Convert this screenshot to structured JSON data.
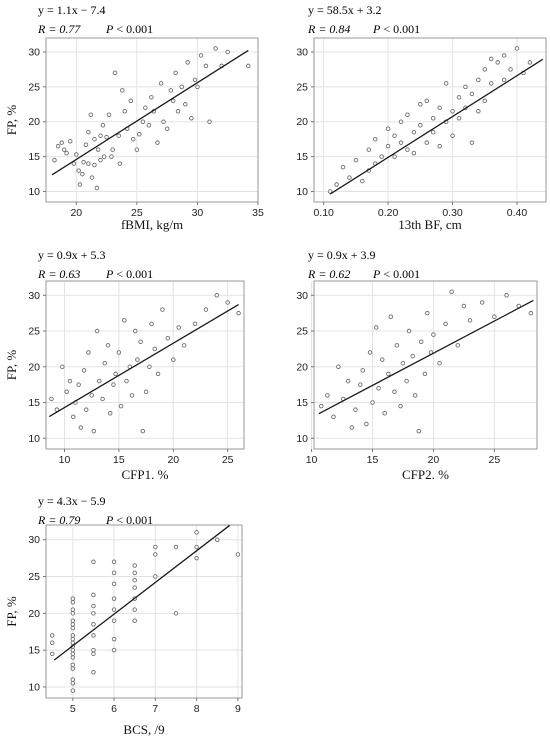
{
  "chart_data": [
    {
      "type": "scatter",
      "equation": "y = 1.1x − 7.4",
      "r_label": "R = 0.77",
      "p_label": "P < 0.001",
      "xlabel": "fBMI, kg/m",
      "ylabel": "FP, %",
      "xlim": [
        17.5,
        35
      ],
      "ylim": [
        8.5,
        32
      ],
      "xticks": [
        20,
        25,
        30,
        35
      ],
      "yticks": [
        10,
        15,
        20,
        25,
        30
      ],
      "trend": {
        "slope": 1.1,
        "intercept": -7.4,
        "x_from": 18.0,
        "x_to": 34.2
      },
      "x": [
        18.2,
        18.5,
        18.8,
        19.0,
        19.2,
        19.5,
        19.8,
        20.0,
        20.2,
        20.3,
        20.5,
        20.6,
        20.8,
        21.0,
        21.0,
        21.2,
        21.3,
        21.5,
        21.5,
        21.7,
        21.8,
        22.0,
        22.0,
        22.2,
        22.3,
        22.5,
        22.7,
        22.9,
        23.0,
        23.2,
        23.5,
        23.6,
        23.8,
        24.0,
        24.2,
        24.5,
        24.7,
        25.0,
        25.2,
        25.5,
        25.7,
        26.0,
        26.2,
        26.4,
        26.7,
        27.0,
        27.2,
        27.5,
        27.8,
        28.0,
        28.2,
        28.4,
        28.7,
        29.0,
        29.2,
        29.5,
        29.8,
        30.0,
        30.3,
        30.7,
        31.0,
        31.5,
        32.0,
        32.5,
        34.2
      ],
      "y": [
        14.5,
        16.5,
        17.0,
        16.0,
        15.5,
        17.2,
        14.0,
        15.3,
        13.0,
        11.0,
        12.5,
        14.2,
        16.7,
        18.5,
        14.0,
        21.0,
        12.0,
        13.8,
        17.5,
        10.5,
        16.0,
        14.5,
        18.0,
        19.5,
        15.0,
        17.8,
        21.0,
        15.0,
        16.0,
        27.0,
        18.0,
        14.0,
        24.5,
        21.5,
        19.0,
        23.0,
        17.5,
        16.0,
        18.2,
        20.0,
        22.0,
        19.5,
        23.5,
        21.5,
        17.0,
        25.5,
        20.0,
        19.0,
        24.5,
        23.0,
        27.0,
        21.5,
        25.0,
        22.5,
        28.5,
        20.5,
        26.0,
        25.0,
        29.5,
        28.0,
        20.0,
        30.5,
        28.0,
        30.0,
        28.0
      ]
    },
    {
      "type": "scatter",
      "equation": "y = 58.5x + 3.2",
      "r_label": "R = 0.84",
      "p_label": "P < 0.001",
      "xlabel": "13th BF, cm",
      "ylabel": "",
      "xlim": [
        0.085,
        0.445
      ],
      "ylim": [
        8.5,
        32
      ],
      "xticks": [
        0.1,
        0.2,
        0.3,
        0.4
      ],
      "yticks": [
        10,
        15,
        20,
        25,
        30
      ],
      "trend": {
        "slope": 58.5,
        "intercept": 3.2,
        "x_from": 0.11,
        "x_to": 0.44
      },
      "x": [
        0.11,
        0.12,
        0.13,
        0.14,
        0.15,
        0.16,
        0.17,
        0.17,
        0.18,
        0.18,
        0.19,
        0.2,
        0.2,
        0.21,
        0.21,
        0.22,
        0.22,
        0.23,
        0.23,
        0.24,
        0.24,
        0.25,
        0.25,
        0.26,
        0.26,
        0.27,
        0.27,
        0.28,
        0.28,
        0.29,
        0.29,
        0.3,
        0.3,
        0.31,
        0.31,
        0.32,
        0.32,
        0.33,
        0.33,
        0.34,
        0.34,
        0.35,
        0.35,
        0.36,
        0.36,
        0.37,
        0.38,
        0.38,
        0.39,
        0.4,
        0.41,
        0.42
      ],
      "y": [
        10.0,
        11.0,
        13.5,
        12.0,
        14.5,
        11.5,
        13.0,
        16.0,
        17.5,
        14.0,
        15.0,
        19.0,
        16.5,
        15.0,
        18.0,
        17.0,
        20.0,
        16.0,
        21.0,
        18.5,
        15.5,
        22.5,
        19.5,
        17.0,
        23.0,
        20.5,
        18.5,
        22.0,
        16.5,
        25.5,
        20.0,
        21.5,
        18.0,
        23.5,
        20.5,
        25.0,
        22.0,
        24.0,
        17.0,
        26.0,
        21.5,
        27.5,
        23.0,
        25.5,
        29.0,
        28.5,
        26.0,
        29.5,
        27.5,
        30.5,
        27.0,
        28.5
      ]
    },
    {
      "type": "scatter",
      "equation": "y = 0.9x + 5.3",
      "r_label": "R = 0.63",
      "p_label": "P < 0.001",
      "xlabel": "CFP1. %",
      "ylabel": "FP, %",
      "xlim": [
        8.3,
        26.5
      ],
      "ylim": [
        8.5,
        32
      ],
      "xticks": [
        10,
        15,
        20,
        25
      ],
      "yticks": [
        10,
        15,
        20,
        25,
        30
      ],
      "trend": {
        "slope": 0.9,
        "intercept": 5.3,
        "x_from": 8.6,
        "x_to": 26.0
      },
      "x": [
        8.8,
        9.3,
        9.8,
        10.2,
        10.5,
        10.8,
        11.0,
        11.3,
        11.5,
        11.8,
        12.0,
        12.2,
        12.5,
        12.7,
        13.0,
        13.2,
        13.5,
        13.7,
        14.0,
        14.2,
        14.5,
        14.7,
        15.0,
        15.2,
        15.5,
        15.7,
        16.0,
        16.2,
        16.5,
        16.7,
        17.0,
        17.2,
        17.5,
        17.8,
        18.0,
        18.3,
        18.6,
        19.0,
        19.5,
        20.0,
        20.5,
        21.0,
        22.0,
        23.0,
        24.0,
        25.0,
        26.0
      ],
      "y": [
        15.5,
        14.0,
        20.0,
        16.5,
        18.0,
        13.0,
        15.0,
        17.5,
        11.5,
        19.5,
        14.0,
        22.0,
        16.0,
        11.0,
        25.0,
        18.0,
        15.5,
        20.5,
        23.0,
        13.5,
        17.5,
        19.0,
        22.0,
        14.5,
        26.5,
        18.0,
        20.0,
        16.0,
        25.0,
        21.0,
        23.5,
        11.0,
        16.5,
        20.0,
        26.0,
        22.5,
        19.0,
        28.0,
        24.0,
        21.0,
        25.5,
        23.0,
        26.0,
        28.0,
        30.0,
        29.0,
        27.5
      ]
    },
    {
      "type": "scatter",
      "equation": "y = 0.9x + 3.9",
      "r_label": "R = 0.62",
      "p_label": "P < 0.001",
      "xlabel": "CFP2. %",
      "ylabel": "",
      "xlim": [
        10.2,
        28.5
      ],
      "ylim": [
        8.5,
        32
      ],
      "xticks": [
        10,
        15,
        20,
        25
      ],
      "yticks": [
        10,
        15,
        20,
        25,
        30
      ],
      "trend": {
        "slope": 0.9,
        "intercept": 3.9,
        "x_from": 10.6,
        "x_to": 28.2
      },
      "x": [
        10.8,
        11.3,
        11.8,
        12.2,
        12.6,
        13.0,
        13.3,
        13.6,
        14.0,
        14.2,
        14.5,
        14.8,
        15.0,
        15.3,
        15.5,
        15.8,
        16.0,
        16.3,
        16.5,
        16.8,
        17.0,
        17.3,
        17.5,
        17.8,
        18.0,
        18.3,
        18.5,
        18.8,
        19.0,
        19.3,
        19.5,
        19.8,
        20.0,
        20.5,
        21.0,
        21.5,
        22.0,
        22.5,
        23.0,
        24.0,
        25.0,
        26.0,
        27.0,
        28.0
      ],
      "y": [
        14.5,
        16.0,
        13.0,
        20.0,
        15.5,
        18.0,
        11.5,
        14.0,
        17.5,
        19.5,
        12.0,
        22.0,
        15.0,
        25.5,
        17.0,
        21.0,
        13.5,
        19.0,
        27.0,
        16.5,
        23.0,
        14.5,
        20.5,
        18.0,
        25.0,
        21.5,
        16.0,
        11.0,
        23.5,
        19.0,
        27.5,
        22.0,
        24.5,
        20.5,
        26.0,
        30.5,
        23.0,
        28.5,
        26.5,
        29.0,
        27.0,
        30.0,
        28.5,
        27.5
      ]
    },
    {
      "type": "scatter",
      "equation": "y = 4.3x − 5.9",
      "r_label": "R = 0.79",
      "p_label": "P < 0.001",
      "xlabel": "BCS, /9",
      "ylabel": "FP, %",
      "xlim": [
        4.35,
        9.1
      ],
      "ylim": [
        8.5,
        32
      ],
      "xticks": [
        5,
        6,
        7,
        8,
        9
      ],
      "xtick_labels": [
        "5",
        "6",
        "7",
        "8",
        "9"
      ],
      "yticks": [
        10,
        15,
        20,
        25,
        30
      ],
      "trend": {
        "slope": 4.3,
        "intercept": -5.9,
        "x_from": 4.55,
        "x_to": 8.8
      },
      "x": [
        4.5,
        4.5,
        4.5,
        5.0,
        5.0,
        5.0,
        5.0,
        5.0,
        5.0,
        5.0,
        5.0,
        5.0,
        5.0,
        5.0,
        5.0,
        5.0,
        5.0,
        5.0,
        5.0,
        5.0,
        5.0,
        5.0,
        5.5,
        5.5,
        5.5,
        5.5,
        5.5,
        5.5,
        5.5,
        5.5,
        5.5,
        6.0,
        6.0,
        6.0,
        6.0,
        6.0,
        6.0,
        6.0,
        6.0,
        6.5,
        6.5,
        6.5,
        6.5,
        6.5,
        6.5,
        6.5,
        7.0,
        7.0,
        7.0,
        7.5,
        7.5,
        8.0,
        8.0,
        8.0,
        8.5,
        9.0
      ],
      "y": [
        14.5,
        17.0,
        16.0,
        9.5,
        10.5,
        11.0,
        12.5,
        13.0,
        14.0,
        14.5,
        15.0,
        15.5,
        16.0,
        16.5,
        17.0,
        18.0,
        18.5,
        19.0,
        20.0,
        20.5,
        21.5,
        22.0,
        12.0,
        14.5,
        15.0,
        17.0,
        18.5,
        20.0,
        21.0,
        22.5,
        27.0,
        15.0,
        16.5,
        19.0,
        20.5,
        22.0,
        24.0,
        25.5,
        27.0,
        19.0,
        20.5,
        22.0,
        23.5,
        24.5,
        25.5,
        26.5,
        25.0,
        28.0,
        29.0,
        20.0,
        29.0,
        27.5,
        29.0,
        31.0,
        30.0,
        28.0
      ]
    }
  ]
}
